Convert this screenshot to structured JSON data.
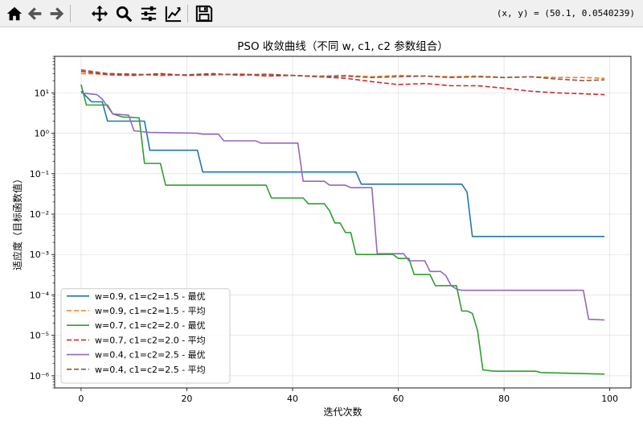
{
  "toolbar": {
    "coords": "(x, y) = (50.1, 0.0540239)",
    "buttons": [
      {
        "name": "home-icon"
      },
      {
        "name": "back-icon"
      },
      {
        "name": "forward-icon"
      },
      {
        "name": "pan-icon"
      },
      {
        "name": "zoom-icon"
      },
      {
        "name": "configure-subplots-icon"
      },
      {
        "name": "edit-axis-icon"
      },
      {
        "name": "save-icon"
      }
    ]
  },
  "chart_data": {
    "type": "line",
    "title": "PSO 收敛曲线（不同 w, c1, c2 参数组合）",
    "xlabel": "迭代次数",
    "ylabel": "适应度（目标函数值）",
    "xlim": [
      -5,
      104
    ],
    "ylim": [
      5e-07,
      80
    ],
    "yscale": "log",
    "grid": true,
    "legend_position": "lower-left",
    "x_ticks": [
      0,
      20,
      40,
      60,
      80,
      100
    ],
    "x_tick_labels": [
      "0",
      "20",
      "40",
      "60",
      "80",
      "100"
    ],
    "y_ticks": [
      1e-06,
      1e-05,
      0.0001,
      0.001,
      0.01,
      0.1,
      1,
      10
    ],
    "y_tick_labels": [
      "10⁻⁶",
      "10⁻⁵",
      "10⁻⁴",
      "10⁻³",
      "10⁻²",
      "10⁻¹",
      "10⁰",
      "10¹"
    ],
    "series": [
      {
        "name": "w=0.9, c1=c2=1.5 - 最优",
        "color": "#1f77b4",
        "dash": false,
        "x": [
          0,
          2,
          4,
          5,
          12,
          13,
          22,
          23,
          52,
          53,
          72,
          73,
          74,
          99
        ],
        "y": [
          11,
          6,
          6,
          2,
          2,
          0.38,
          0.38,
          0.11,
          0.11,
          0.055,
          0.055,
          0.035,
          0.0028,
          0.0028
        ]
      },
      {
        "name": "w=0.9, c1=c2=1.5 - 平均",
        "color": "#ff7f0e",
        "dash": true,
        "x": [
          0,
          5,
          10,
          15,
          20,
          25,
          30,
          35,
          40,
          45,
          50,
          55,
          60,
          65,
          70,
          75,
          80,
          85,
          90,
          95,
          99
        ],
        "y": [
          30,
          29,
          28,
          29,
          27,
          28,
          29,
          28,
          27,
          26,
          27,
          25,
          27,
          26,
          25,
          26,
          24,
          25,
          24,
          24,
          23
        ]
      },
      {
        "name": "w=0.7, c1=c2=2.0 - 最优",
        "color": "#2ca02c",
        "dash": false,
        "x": [
          0,
          1,
          3,
          5,
          6,
          8,
          9,
          11,
          12,
          15,
          16,
          35,
          36,
          42,
          43,
          46,
          47,
          48,
          49,
          50,
          51,
          52,
          53,
          54,
          59,
          60,
          62,
          63,
          66,
          67,
          71,
          72,
          73,
          74,
          75,
          76,
          78,
          86,
          87,
          99
        ],
        "y": [
          16,
          5,
          5,
          5,
          3,
          2.5,
          2.5,
          2.4,
          0.18,
          0.18,
          0.052,
          0.052,
          0.025,
          0.025,
          0.018,
          0.018,
          0.012,
          0.006,
          0.006,
          0.0035,
          0.0035,
          0.001,
          0.001,
          0.001,
          0.001,
          0.0008,
          0.0008,
          0.00032,
          0.00032,
          0.00017,
          0.00017,
          4e-05,
          4e-05,
          3.5e-05,
          1.3e-05,
          1.4e-06,
          1.3e-06,
          1.3e-06,
          1.2e-06,
          1.1e-06
        ]
      },
      {
        "name": "w=0.7, c1=c2=2.0 - 平均",
        "color": "#d62728",
        "dash": true,
        "x": [
          0,
          5,
          10,
          15,
          20,
          25,
          30,
          35,
          40,
          45,
          50,
          55,
          60,
          65,
          70,
          75,
          80,
          85,
          90,
          95,
          99
        ],
        "y": [
          34,
          28,
          27,
          30,
          27,
          28,
          29,
          26,
          27,
          25,
          23,
          19,
          16,
          17,
          15,
          15,
          13,
          11,
          10,
          9.5,
          9
        ]
      },
      {
        "name": "w=0.4, c1=c2=2.5 - 最优",
        "color": "#9467bd",
        "dash": false,
        "x": [
          0,
          3,
          4,
          6,
          9,
          10,
          13,
          22,
          23,
          26,
          27,
          33,
          34,
          41,
          42,
          46,
          47,
          50,
          51,
          55,
          56,
          61,
          62,
          65,
          66,
          68,
          69,
          70,
          71,
          72,
          95,
          96,
          99
        ],
        "y": [
          10,
          9,
          7,
          3,
          2.8,
          1.15,
          1.05,
          1.0,
          0.95,
          0.95,
          0.65,
          0.65,
          0.57,
          0.57,
          0.065,
          0.065,
          0.052,
          0.052,
          0.045,
          0.045,
          0.00105,
          0.00105,
          0.0007,
          0.0007,
          0.00038,
          0.00038,
          0.0003,
          0.00017,
          0.00014,
          0.00013,
          0.00013,
          2.5e-05,
          2.4e-05
        ]
      },
      {
        "name": "w=0.4, c1=c2=2.5 - 平均",
        "color": "#8c564b",
        "dash": true,
        "x": [
          0,
          5,
          10,
          15,
          20,
          25,
          30,
          35,
          40,
          45,
          50,
          55,
          60,
          65,
          70,
          75,
          80,
          85,
          90,
          95,
          99
        ],
        "y": [
          37,
          30,
          29,
          27,
          28,
          30,
          27,
          29,
          27,
          25,
          26,
          24,
          25,
          26,
          24,
          25,
          24,
          25,
          22,
          20,
          21
        ]
      }
    ]
  }
}
